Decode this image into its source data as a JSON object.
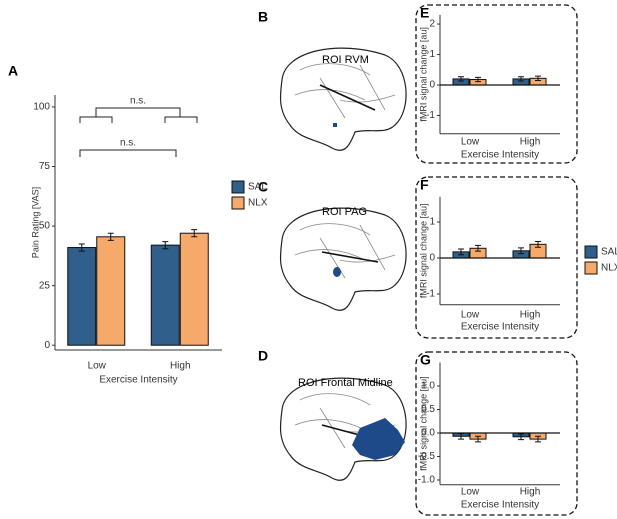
{
  "chart_data": [
    {
      "type": "bar",
      "panel": "A",
      "ylabel": "Pain Rating [VAS]",
      "xlabel": "Exercise Intensity",
      "categories": [
        "Low",
        "High"
      ],
      "series": [
        {
          "name": "SAL",
          "color": "#2f5f8a",
          "values": [
            41,
            42
          ],
          "errors": [
            1.5,
            1.5
          ]
        },
        {
          "name": "NLX",
          "color": "#f5a96a",
          "values": [
            45.5,
            47
          ],
          "errors": [
            1.5,
            1.5
          ]
        }
      ],
      "ylim": [
        -2,
        105
      ],
      "yticks": [
        0,
        25,
        50,
        75,
        100
      ],
      "legend": "right",
      "annotations": [
        "n.s.",
        "n.s."
      ]
    },
    {
      "type": "bar",
      "panel": "E",
      "ylabel": "fMRI signal change [au]",
      "xlabel": "Exercise Intensity",
      "categories": [
        "Low",
        "High"
      ],
      "series": [
        {
          "color": "#2f5f8a",
          "values": [
            0.2,
            0.2
          ],
          "errors": [
            0.07,
            0.07
          ]
        },
        {
          "color": "#f5a96a",
          "values": [
            0.18,
            0.22
          ],
          "errors": [
            0.07,
            0.07
          ]
        }
      ],
      "ylim": [
        -1.6,
        2.3
      ],
      "yticks": [
        -1,
        0,
        1,
        2
      ],
      "zero_line": true
    },
    {
      "type": "bar",
      "panel": "F",
      "ylabel": "fMRI signal change [au]",
      "xlabel": "Exercise Intensity",
      "categories": [
        "Low",
        "High"
      ],
      "series": [
        {
          "name": "SAL",
          "color": "#2f5f8a",
          "values": [
            0.17,
            0.2
          ],
          "errors": [
            0.08,
            0.08
          ]
        },
        {
          "name": "NLX",
          "color": "#f5a96a",
          "values": [
            0.27,
            0.38
          ],
          "errors": [
            0.08,
            0.08
          ]
        }
      ],
      "ylim": [
        -1.3,
        1.7
      ],
      "yticks": [
        -1,
        0,
        1
      ],
      "zero_line": true,
      "legend": "right"
    },
    {
      "type": "bar",
      "panel": "G",
      "ylabel": "fMRI signal change [au]",
      "xlabel": "Exercise Intensity",
      "categories": [
        "Low",
        "High"
      ],
      "series": [
        {
          "color": "#2f5f8a",
          "values": [
            -0.07,
            -0.08
          ],
          "errors": [
            0.06,
            0.06
          ]
        },
        {
          "color": "#f5a96a",
          "values": [
            -0.13,
            -0.13
          ],
          "errors": [
            0.06,
            0.06
          ]
        }
      ],
      "ylim": [
        -1.1,
        1.5
      ],
      "yticks": [
        {
          "value": -1,
          "label": "-1.0"
        },
        {
          "value": -0.5,
          "label": "-0.5"
        },
        {
          "value": 0,
          "label": "0.0"
        },
        {
          "value": 0.5,
          "label": "0.5"
        },
        {
          "value": 1,
          "label": "1.0"
        }
      ],
      "zero_line": true
    }
  ],
  "panels": [
    {
      "letter": "B",
      "label": "ROI RVM"
    },
    {
      "letter": "C",
      "label": "ROI PAG"
    },
    {
      "letter": "D",
      "label": "ROI Frontal Midline"
    }
  ]
}
